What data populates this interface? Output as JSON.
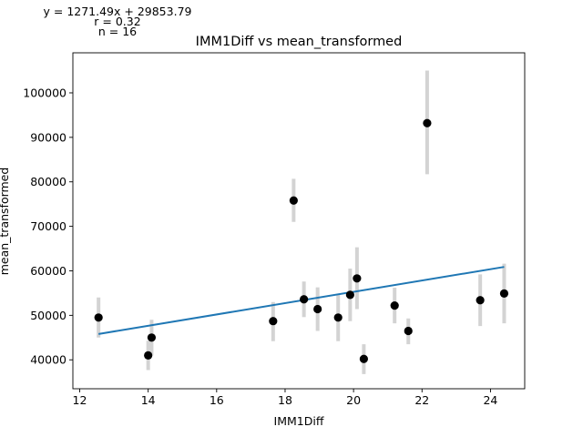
{
  "chart_data": {
    "type": "scatter",
    "title": "IMM1Diff vs mean_transformed",
    "xlabel": "IMM1Diff",
    "ylabel": "mean_transformed",
    "annotations": [
      "y = 1271.49x + 29853.79",
      "r = 0.32",
      "n = 16"
    ],
    "xlim": [
      11.8,
      25.0
    ],
    "ylim": [
      33500,
      109000
    ],
    "xticks": [
      12,
      14,
      16,
      18,
      20,
      22,
      24
    ],
    "yticks": [
      40000,
      50000,
      60000,
      70000,
      80000,
      90000,
      100000
    ],
    "grid": false,
    "regression": {
      "slope": 1271.49,
      "intercept": 29853.79,
      "x_range": [
        12.55,
        24.4
      ]
    },
    "points": [
      {
        "x": 12.55,
        "y": 49500,
        "err_low": 45000,
        "err_high": 54000
      },
      {
        "x": 14.0,
        "y": 41000,
        "err_low": 37700,
        "err_high": 44300
      },
      {
        "x": 14.1,
        "y": 45000,
        "err_low": 41000,
        "err_high": 49000
      },
      {
        "x": 17.65,
        "y": 48700,
        "err_low": 44200,
        "err_high": 53000
      },
      {
        "x": 18.25,
        "y": 75800,
        "err_low": 71000,
        "err_high": 80700
      },
      {
        "x": 18.55,
        "y": 53600,
        "err_low": 49600,
        "err_high": 57600
      },
      {
        "x": 18.95,
        "y": 51400,
        "err_low": 46500,
        "err_high": 56300
      },
      {
        "x": 19.55,
        "y": 49500,
        "err_low": 44200,
        "err_high": 54600
      },
      {
        "x": 19.9,
        "y": 54600,
        "err_low": 48700,
        "err_high": 60500
      },
      {
        "x": 20.1,
        "y": 58300,
        "err_low": 51400,
        "err_high": 65300
      },
      {
        "x": 20.3,
        "y": 40200,
        "err_low": 36800,
        "err_high": 43500
      },
      {
        "x": 21.2,
        "y": 52200,
        "err_low": 48200,
        "err_high": 56200
      },
      {
        "x": 21.6,
        "y": 46500,
        "err_low": 43500,
        "err_high": 49300
      },
      {
        "x": 22.15,
        "y": 93200,
        "err_low": 81700,
        "err_high": 105000
      },
      {
        "x": 23.7,
        "y": 53400,
        "err_low": 47600,
        "err_high": 59200
      },
      {
        "x": 24.4,
        "y": 54900,
        "err_low": 48200,
        "err_high": 61600
      }
    ],
    "colors": {
      "points": "#000000",
      "errorbars": "#d3d3d3",
      "regression": "#1f77b4"
    }
  }
}
